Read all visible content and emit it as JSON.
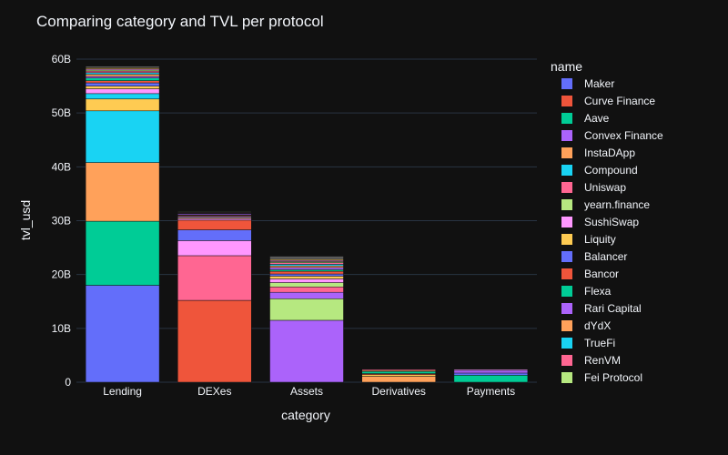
{
  "chart_data": {
    "type": "bar",
    "stacked": true,
    "title": "Comparing category and TVL per protocol",
    "xlabel": "category",
    "ylabel": "tvl_usd",
    "categories": [
      "Lending",
      "DEXes",
      "Assets",
      "Derivatives",
      "Payments"
    ],
    "ylim": [
      0,
      60
    ],
    "yticks": [
      0,
      10,
      20,
      30,
      40,
      50,
      60
    ],
    "ytick_labels": [
      "0",
      "10B",
      "20B",
      "30B",
      "40B",
      "50B",
      "60B"
    ],
    "grid": true,
    "legend_title": "name",
    "legend_position": "right",
    "series": [
      {
        "name": "Maker",
        "color": "#636efa",
        "values": [
          18.0,
          0,
          0,
          0,
          0
        ]
      },
      {
        "name": "Curve Finance",
        "color": "#EF553B",
        "values": [
          0,
          15.2,
          0,
          0,
          0
        ]
      },
      {
        "name": "Aave",
        "color": "#00cc96",
        "values": [
          11.9,
          0,
          0,
          0,
          0
        ]
      },
      {
        "name": "Convex Finance",
        "color": "#ab63fa",
        "values": [
          0,
          0,
          11.5,
          0,
          0
        ]
      },
      {
        "name": "InstaDApp",
        "color": "#FFA15A",
        "values": [
          10.9,
          0,
          0,
          0,
          0
        ]
      },
      {
        "name": "Compound",
        "color": "#19d3f3",
        "values": [
          9.6,
          0,
          0,
          0,
          0
        ]
      },
      {
        "name": "Uniswap",
        "color": "#FF6692",
        "values": [
          0,
          8.3,
          0,
          0,
          0
        ]
      },
      {
        "name": "yearn.finance",
        "color": "#B6E880",
        "values": [
          0,
          0,
          4.0,
          0,
          0
        ]
      },
      {
        "name": "SushiSwap",
        "color": "#FF97FF",
        "values": [
          0,
          2.8,
          0,
          0,
          0
        ]
      },
      {
        "name": "Liquity",
        "color": "#FECB52",
        "values": [
          2.2,
          0,
          0,
          0,
          0
        ]
      },
      {
        "name": "Balancer",
        "color": "#636efa",
        "values": [
          0,
          2.0,
          0,
          0,
          0
        ]
      },
      {
        "name": "Bancor",
        "color": "#EF553B",
        "values": [
          0,
          1.8,
          0,
          0,
          0
        ]
      },
      {
        "name": "Flexa",
        "color": "#00cc96",
        "values": [
          0,
          0,
          0,
          0,
          1.3
        ]
      },
      {
        "name": "Rari Capital",
        "color": "#ab63fa",
        "values": [
          0,
          0,
          1.2,
          0,
          0
        ]
      },
      {
        "name": "dYdX",
        "color": "#FFA15A",
        "values": [
          0,
          0,
          0,
          1.1,
          0
        ]
      },
      {
        "name": "TrueFi",
        "color": "#19d3f3",
        "values": [
          1.0,
          0,
          0,
          0,
          0
        ]
      },
      {
        "name": "RenVM",
        "color": "#FF6692",
        "values": [
          0,
          0,
          1.0,
          0,
          0
        ]
      },
      {
        "name": "Fei Protocol",
        "color": "#B6E880",
        "values": [
          0,
          0,
          0.8,
          0,
          0
        ]
      },
      {
        "name": "",
        "color": "#FF97FF",
        "values": [
          0.9,
          0.3,
          0.7,
          0,
          0
        ]
      },
      {
        "name": "",
        "color": "#FECB52",
        "values": [
          0.5,
          0.2,
          0.5,
          0.3,
          0
        ]
      },
      {
        "name": "",
        "color": "#636efa",
        "values": [
          0.6,
          0.2,
          0.4,
          0,
          0.4
        ]
      },
      {
        "name": "",
        "color": "#EF553B",
        "values": [
          0.4,
          0.2,
          0.5,
          0.2,
          0
        ]
      },
      {
        "name": "",
        "color": "#00cc96",
        "values": [
          0.5,
          0.1,
          0.3,
          0.4,
          0
        ]
      },
      {
        "name": "",
        "color": "#ab63fa",
        "values": [
          0.3,
          0.2,
          0.4,
          0,
          0.5
        ]
      },
      {
        "name": "",
        "color": "#FFA15A",
        "values": [
          0.4,
          0.1,
          0.3,
          0.2,
          0
        ]
      },
      {
        "name": "",
        "color": "#19d3f3",
        "values": [
          0.3,
          0.1,
          0.3,
          0,
          0
        ]
      },
      {
        "name": "",
        "color": "#FF6692",
        "values": [
          0.3,
          0.1,
          0.3,
          0.2,
          0
        ]
      },
      {
        "name": "",
        "color": "#B6E880",
        "values": [
          0.2,
          0.1,
          0.2,
          0,
          0
        ]
      },
      {
        "name": "",
        "color": "#FF97FF",
        "values": [
          0.2,
          0,
          0.2,
          0,
          0.2
        ]
      },
      {
        "name": "",
        "color": "#FECB52",
        "values": [
          0.2,
          0,
          0.2,
          0,
          0
        ]
      },
      {
        "name": "",
        "color": "#5a5a5a",
        "values": [
          0.3,
          0.1,
          0.6,
          0.1,
          0.1
        ]
      }
    ]
  }
}
